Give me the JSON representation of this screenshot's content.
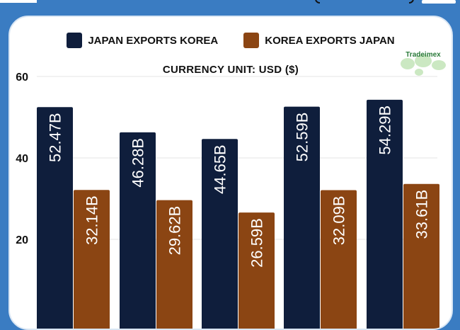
{
  "legend": {
    "series_1": "JAPAN EXPORTS KOREA",
    "series_2": "KOREA EXPORTS JAPAN"
  },
  "subtitle": "CURRENCY UNIT: USD ($)",
  "logo_text": "Tradeimex",
  "colors": {
    "series_1": "#0f1e3c",
    "series_2": "#8b4513",
    "background": "#3a7cc2"
  },
  "chart_data": {
    "type": "bar",
    "series": [
      {
        "name": "JAPAN EXPORTS KOREA",
        "values": [
          52.47,
          46.28,
          44.65,
          52.59,
          54.29
        ],
        "labels": [
          "52.47B",
          "46.28B",
          "44.65B",
          "52.59B",
          "54.29B"
        ]
      },
      {
        "name": "KOREA EXPORTS JAPAN",
        "values": [
          32.14,
          29.62,
          26.59,
          32.09,
          33.61
        ],
        "labels": [
          "32.14B",
          "29.62B",
          "26.59B",
          "32.09B",
          "33.61B"
        ]
      }
    ],
    "yticks": [
      20,
      40,
      60
    ],
    "ylim": [
      0,
      60
    ],
    "ylabel": "",
    "xlabel": "",
    "grid": true
  }
}
